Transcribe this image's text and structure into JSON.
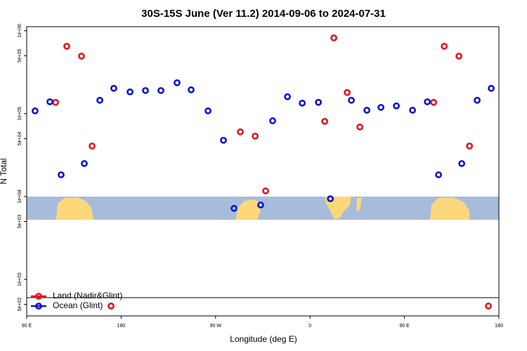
{
  "chart_data": {
    "type": "scatter",
    "title": "30S-15S June (Ver 11.2)   2014-09-06 to 2024-07-31",
    "x_label": "Longitude (deg E)",
    "y_label": "N Total",
    "log_y": true,
    "legend": "bottom-left",
    "xlim": [
      90,
      540
    ],
    "ylim": [
      363,
      1120000
    ],
    "xticks": [
      {
        "value": 90,
        "label": "90 E"
      },
      {
        "value": 180,
        "label": "180"
      },
      {
        "value": 270,
        "label": "90 W"
      },
      {
        "value": 360,
        "label": "0"
      },
      {
        "value": 450,
        "label": "90 E"
      },
      {
        "value": 540,
        "label": "180"
      }
    ],
    "yticks": [
      {
        "value": 1000000,
        "label": "1e+06"
      },
      {
        "value": 500000,
        "label": "5e+05"
      },
      {
        "value": 100000,
        "label": "1e+05"
      },
      {
        "value": 50000,
        "label": "5e+04"
      },
      {
        "value": 10000,
        "label": "1e+04"
      },
      {
        "value": 5000,
        "label": "5e+03"
      },
      {
        "value": 1000,
        "label": "1e+03"
      },
      {
        "value": 500,
        "label": "5e+02"
      }
    ],
    "series": [
      {
        "name": "Land (Nadir&Glint)",
        "color": "#e8141c",
        "x": [
          117.5,
          128.2,
          142.2,
          152.3,
          170.4,
          293.6,
          307.7,
          317.7,
          374,
          382.7,
          395.4,
          407.5,
          477.8,
          487.9,
          501.9,
          512,
          530
        ],
        "values": [
          137000,
          650000,
          495000,
          40700,
          478,
          60300,
          53600,
          11700,
          80700,
          820000,
          180000,
          69000,
          137000,
          650000,
          495000,
          40700,
          478
        ]
      },
      {
        "name": "Ocean (Glint)",
        "color": "#0a14d2",
        "x": [
          98,
          112.1,
          122.8,
          144.9,
          159.7,
          173,
          188.5,
          203.2,
          217.9,
          233.3,
          246.7,
          262.8,
          277.5,
          287.6,
          313,
          324.4,
          338.5,
          352.6,
          368,
          379.4,
          399.4,
          414.2,
          427.6,
          442.3,
          457.7,
          471.8,
          482.5,
          504.6,
          519.3,
          532.7
        ],
        "values": [
          108000,
          139000,
          18300,
          25000,
          145000,
          202000,
          183000,
          190000,
          190000,
          236000,
          194000,
          108000,
          47700,
          7200,
          7900,
          82000,
          160000,
          134000,
          137000,
          9400,
          145000,
          110000,
          119000,
          124000,
          110000,
          139000,
          18300,
          25000,
          145000,
          202000
        ]
      }
    ]
  }
}
